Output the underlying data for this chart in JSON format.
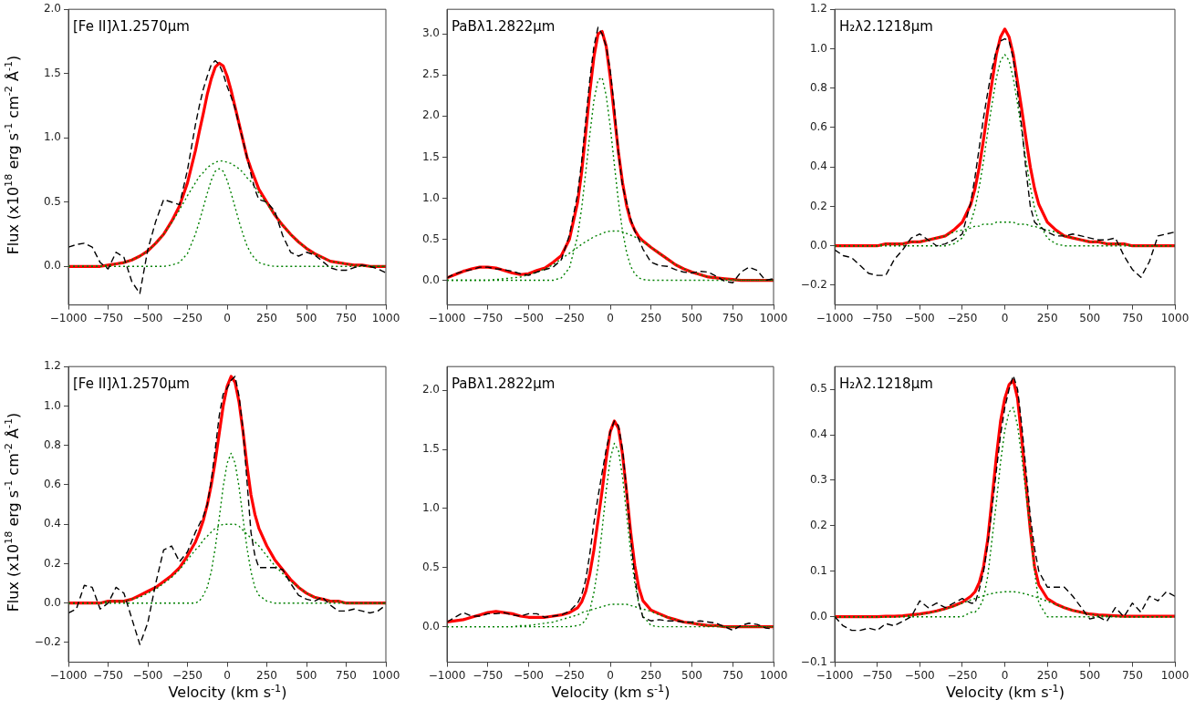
{
  "chart_data": [
    {
      "type": "line",
      "annotations": [
        "[Fe II]λ1.2570μm"
      ],
      "ylabel": "Flux (x10$^{18}$ erg s$^{-1}$ cm$^{-2}$ Å$^{-1}$)",
      "x": [
        -1000,
        -950,
        -900,
        -850,
        -800,
        -750,
        -700,
        -650,
        -600,
        -550,
        -500,
        -450,
        -400,
        -350,
        -300,
        -250,
        -200,
        -175,
        -150,
        -125,
        -100,
        -75,
        -50,
        -25,
        0,
        25,
        50,
        75,
        100,
        125,
        150,
        175,
        200,
        250,
        300,
        350,
        400,
        450,
        500,
        550,
        600,
        650,
        700,
        750,
        800,
        850,
        900,
        950,
        1000
      ],
      "xlim": [
        -1000,
        1000
      ],
      "xticks": [
        -1000,
        -750,
        -500,
        -250,
        0,
        250,
        500,
        750,
        1000
      ],
      "ylim": [
        -0.3,
        2.0
      ],
      "yticks": [
        {
          "value": 0,
          "label": "0.0"
        },
        {
          "value": 0.5,
          "label": "0.5"
        },
        {
          "value": 1,
          "label": "1.0"
        },
        {
          "value": 1.5,
          "label": "1.5"
        },
        {
          "value": 2,
          "label": "2.0"
        }
      ],
      "series": [
        {
          "color": "#000000",
          "line_style": "dashed",
          "values": [
            0.15,
            0.17,
            0.18,
            0.15,
            0.03,
            -0.02,
            0.11,
            0.07,
            -0.12,
            -0.21,
            0.13,
            0.35,
            0.52,
            0.5,
            0.48,
            0.75,
            1.1,
            1.25,
            1.38,
            1.48,
            1.57,
            1.6,
            1.57,
            1.5,
            1.4,
            1.32,
            1.23,
            1.1,
            0.98,
            0.85,
            0.72,
            0.6,
            0.52,
            0.5,
            0.43,
            0.24,
            0.11,
            0.08,
            0.11,
            0.09,
            0.04,
            -0.01,
            -0.03,
            -0.03,
            -0.01,
            0.01,
            0,
            -0.02,
            -0.05
          ]
        },
        {
          "color": "#ff0000",
          "line_style": "solid",
          "values": [
            0,
            0,
            0,
            0,
            0,
            0.01,
            0.02,
            0.03,
            0.05,
            0.08,
            0.12,
            0.18,
            0.25,
            0.35,
            0.47,
            0.65,
            0.9,
            1.05,
            1.19,
            1.34,
            1.46,
            1.55,
            1.58,
            1.56,
            1.48,
            1.37,
            1.24,
            1.11,
            0.98,
            0.85,
            0.76,
            0.68,
            0.6,
            0.5,
            0.4,
            0.32,
            0.25,
            0.19,
            0.14,
            0.1,
            0.07,
            0.04,
            0.03,
            0.02,
            0.01,
            0.01,
            0,
            0,
            0
          ]
        },
        {
          "color": "#008000",
          "line_style": "dotted",
          "values": [
            0,
            0,
            0,
            0,
            0,
            0.01,
            0.02,
            0.03,
            0.05,
            0.08,
            0.12,
            0.18,
            0.25,
            0.34,
            0.44,
            0.55,
            0.65,
            0.7,
            0.73,
            0.77,
            0.79,
            0.81,
            0.82,
            0.82,
            0.81,
            0.8,
            0.78,
            0.76,
            0.73,
            0.69,
            0.66,
            0.62,
            0.57,
            0.49,
            0.4,
            0.32,
            0.25,
            0.19,
            0.14,
            0.1,
            0.07,
            0.04,
            0.03,
            0.02,
            0.01,
            0.01,
            0,
            0,
            0
          ]
        },
        {
          "color": "#008000",
          "line_style": "dotted",
          "values": [
            0,
            0,
            0,
            0,
            0,
            0,
            0,
            0,
            0,
            0,
            0,
            0,
            0,
            0.01,
            0.03,
            0.1,
            0.25,
            0.35,
            0.46,
            0.57,
            0.67,
            0.74,
            0.76,
            0.74,
            0.67,
            0.57,
            0.46,
            0.35,
            0.25,
            0.16,
            0.1,
            0.06,
            0.03,
            0.01,
            0,
            0,
            0,
            0,
            0,
            0,
            0,
            0,
            0,
            0,
            0,
            0,
            0,
            0,
            0
          ]
        }
      ]
    },
    {
      "type": "line",
      "annotations": [
        "PaBλ1.2822μm"
      ],
      "x": [
        -1000,
        -950,
        -900,
        -850,
        -800,
        -750,
        -700,
        -650,
        -600,
        -550,
        -500,
        -450,
        -400,
        -350,
        -300,
        -250,
        -200,
        -175,
        -150,
        -125,
        -100,
        -75,
        -50,
        -25,
        0,
        25,
        50,
        75,
        100,
        125,
        150,
        175,
        200,
        250,
        300,
        350,
        400,
        450,
        500,
        550,
        600,
        650,
        700,
        750,
        800,
        850,
        900,
        950,
        1000
      ],
      "xlim": [
        -1000,
        1000
      ],
      "xticks": [
        -1000,
        -750,
        -500,
        -250,
        0,
        250,
        500,
        750,
        1000
      ],
      "ylim": [
        -0.3,
        3.3
      ],
      "yticks": [
        {
          "value": 0,
          "label": "0.0"
        },
        {
          "value": 0.5,
          "label": "0.5"
        },
        {
          "value": 1,
          "label": "1.0"
        },
        {
          "value": 1.5,
          "label": "1.5"
        },
        {
          "value": 2,
          "label": "2.0"
        },
        {
          "value": 2.5,
          "label": "2.5"
        },
        {
          "value": 3,
          "label": "3.0"
        }
      ],
      "series": [
        {
          "color": "#000000",
          "line_style": "dashed",
          "values": [
            0.03,
            0.08,
            0.11,
            0.13,
            0.16,
            0.16,
            0.14,
            0.13,
            0.11,
            0.08,
            0.06,
            0.1,
            0.13,
            0.16,
            0.25,
            0.55,
            1.05,
            1.45,
            1.95,
            2.45,
            2.85,
            3.08,
            3.0,
            2.85,
            2.55,
            2.1,
            1.55,
            1.15,
            0.95,
            0.75,
            0.6,
            0.5,
            0.38,
            0.22,
            0.18,
            0.17,
            0.13,
            0.1,
            0.09,
            0.11,
            0.1,
            0.05,
            -0.01,
            -0.03,
            0.1,
            0.16,
            0.12,
            0,
            0.02
          ]
        },
        {
          "color": "#ff0000",
          "line_style": "solid",
          "values": [
            0.03,
            0.07,
            0.11,
            0.14,
            0.16,
            0.16,
            0.15,
            0.12,
            0.09,
            0.07,
            0.08,
            0.12,
            0.15,
            0.22,
            0.3,
            0.5,
            0.95,
            1.32,
            1.8,
            2.3,
            2.72,
            3.0,
            3.03,
            2.85,
            2.47,
            2.01,
            1.56,
            1.19,
            0.91,
            0.72,
            0.61,
            0.53,
            0.48,
            0.4,
            0.33,
            0.26,
            0.19,
            0.14,
            0.1,
            0.07,
            0.04,
            0.03,
            0.02,
            0.01,
            0,
            0,
            0,
            0,
            0
          ]
        },
        {
          "color": "#008000",
          "line_style": "dotted",
          "values": [
            0,
            0,
            0,
            0,
            0,
            0,
            0.01,
            0.02,
            0.03,
            0.04,
            0.07,
            0.1,
            0.14,
            0.19,
            0.26,
            0.33,
            0.4,
            0.44,
            0.47,
            0.5,
            0.53,
            0.55,
            0.57,
            0.59,
            0.6,
            0.6,
            0.6,
            0.59,
            0.57,
            0.55,
            0.53,
            0.5,
            0.47,
            0.4,
            0.33,
            0.26,
            0.19,
            0.14,
            0.1,
            0.07,
            0.04,
            0.03,
            0.02,
            0.01,
            0,
            0,
            0,
            0,
            0
          ]
        },
        {
          "color": "#008000",
          "line_style": "dotted",
          "values": [
            0,
            0,
            0,
            0,
            0,
            0,
            0,
            0,
            0,
            0,
            0,
            0,
            0,
            0,
            0.03,
            0.15,
            0.54,
            0.88,
            1.32,
            1.78,
            2.19,
            2.44,
            2.47,
            2.25,
            1.87,
            1.41,
            0.96,
            0.6,
            0.34,
            0.17,
            0.08,
            0.03,
            0.01,
            0,
            0,
            0,
            0,
            0,
            0,
            0,
            0,
            0,
            0,
            0,
            0,
            0,
            0,
            0,
            0
          ]
        }
      ]
    },
    {
      "type": "line",
      "annotations": [
        "H₂λ2.1218μm"
      ],
      "x": [
        -1000,
        -950,
        -900,
        -850,
        -800,
        -750,
        -700,
        -650,
        -600,
        -550,
        -500,
        -450,
        -400,
        -350,
        -300,
        -250,
        -200,
        -175,
        -150,
        -125,
        -100,
        -75,
        -50,
        -25,
        0,
        25,
        50,
        75,
        100,
        125,
        150,
        175,
        200,
        250,
        300,
        350,
        400,
        450,
        500,
        550,
        600,
        650,
        700,
        750,
        800,
        850,
        900,
        950,
        1000
      ],
      "xlim": [
        -1000,
        1000
      ],
      "xticks": [
        -1000,
        -750,
        -500,
        -250,
        0,
        250,
        500,
        750,
        1000
      ],
      "ylim": [
        -0.3,
        1.2
      ],
      "yticks": [
        {
          "value": -0.2,
          "label": "−0.2"
        },
        {
          "value": 0,
          "label": "0.0"
        },
        {
          "value": 0.2,
          "label": "0.2"
        },
        {
          "value": 0.4,
          "label": "0.4"
        },
        {
          "value": 0.6,
          "label": "0.6"
        },
        {
          "value": 0.8,
          "label": "0.8"
        },
        {
          "value": 1,
          "label": "1.0"
        },
        {
          "value": 1.2,
          "label": "1.2"
        }
      ],
      "series": [
        {
          "color": "#000000",
          "line_style": "dashed",
          "values": [
            -0.02,
            -0.05,
            -0.06,
            -0.1,
            -0.14,
            -0.15,
            -0.15,
            -0.07,
            -0.02,
            0.04,
            0.06,
            0.03,
            0,
            0.01,
            0.03,
            0.06,
            0.22,
            0.35,
            0.5,
            0.65,
            0.78,
            0.9,
            0.99,
            1.04,
            1.05,
            1.04,
            0.95,
            0.78,
            0.6,
            0.38,
            0.2,
            0.12,
            0.1,
            0.07,
            0.05,
            0.05,
            0.06,
            0.05,
            0.04,
            0.03,
            0.03,
            0.04,
            -0.05,
            -0.12,
            -0.16,
            -0.08,
            0.05,
            0.06,
            0.07
          ]
        },
        {
          "color": "#ff0000",
          "line_style": "solid",
          "values": [
            0,
            0,
            0,
            0,
            0,
            0,
            0.01,
            0.01,
            0.01,
            0.02,
            0.02,
            0.03,
            0.04,
            0.05,
            0.08,
            0.12,
            0.21,
            0.29,
            0.4,
            0.54,
            0.69,
            0.83,
            0.97,
            1.06,
            1.1,
            1.06,
            0.97,
            0.83,
            0.69,
            0.54,
            0.4,
            0.29,
            0.21,
            0.12,
            0.08,
            0.05,
            0.04,
            0.03,
            0.02,
            0.02,
            0.01,
            0.01,
            0.01,
            0,
            0,
            0,
            0,
            0,
            0
          ]
        },
        {
          "color": "#008000",
          "line_style": "dotted",
          "values": [
            0,
            0,
            0,
            0,
            0,
            0,
            0.01,
            0.01,
            0.01,
            0.02,
            0.02,
            0.03,
            0.04,
            0.05,
            0.07,
            0.08,
            0.09,
            0.1,
            0.1,
            0.11,
            0.11,
            0.11,
            0.12,
            0.12,
            0.12,
            0.12,
            0.12,
            0.11,
            0.11,
            0.11,
            0.1,
            0.1,
            0.09,
            0.08,
            0.07,
            0.05,
            0.04,
            0.03,
            0.02,
            0.02,
            0.01,
            0.01,
            0.01,
            0,
            0,
            0,
            0,
            0,
            0
          ]
        },
        {
          "color": "#008000",
          "line_style": "dotted",
          "values": [
            0,
            0,
            0,
            0,
            0,
            0,
            0,
            0,
            0,
            0,
            0,
            0,
            0,
            0,
            0.01,
            0.04,
            0.12,
            0.19,
            0.3,
            0.43,
            0.58,
            0.72,
            0.85,
            0.94,
            0.97,
            0.94,
            0.85,
            0.72,
            0.58,
            0.43,
            0.3,
            0.19,
            0.12,
            0.04,
            0.01,
            0,
            0,
            0,
            0,
            0,
            0,
            0,
            0,
            0,
            0,
            0,
            0,
            0,
            0
          ]
        }
      ]
    },
    {
      "type": "line",
      "annotations": [
        "[Fe II]λ1.2570μm"
      ],
      "ylabel": "Flux (x10$^{18}$ erg s$^{-1}$ cm$^{-2}$ Å$^{-1}$)",
      "xlabel": "Velocity (km s$^{-1}$)",
      "x": [
        -1000,
        -950,
        -900,
        -850,
        -800,
        -750,
        -700,
        -650,
        -600,
        -550,
        -500,
        -450,
        -400,
        -350,
        -300,
        -250,
        -200,
        -175,
        -150,
        -125,
        -100,
        -75,
        -50,
        -25,
        0,
        25,
        50,
        75,
        100,
        125,
        150,
        175,
        200,
        250,
        300,
        350,
        400,
        450,
        500,
        550,
        600,
        650,
        700,
        750,
        800,
        850,
        900,
        950,
        1000
      ],
      "xlim": [
        -1000,
        1000
      ],
      "xticks": [
        -1000,
        -750,
        -500,
        -250,
        0,
        250,
        500,
        750,
        1000
      ],
      "ylim": [
        -0.3,
        1.2
      ],
      "yticks": [
        {
          "value": -0.2,
          "label": "−0.2"
        },
        {
          "value": 0,
          "label": "0.0"
        },
        {
          "value": 0.2,
          "label": "0.2"
        },
        {
          "value": 0.4,
          "label": "0.4"
        },
        {
          "value": 0.6,
          "label": "0.6"
        },
        {
          "value": 0.8,
          "label": "0.8"
        },
        {
          "value": 1,
          "label": "1.0"
        },
        {
          "value": 1.2,
          "label": "1.2"
        }
      ],
      "series": [
        {
          "color": "#000000",
          "line_style": "dashed",
          "values": [
            -0.05,
            -0.03,
            0.09,
            0.08,
            -0.03,
            0,
            0.08,
            0.05,
            -0.08,
            -0.21,
            -0.1,
            0.1,
            0.27,
            0.29,
            0.21,
            0.26,
            0.36,
            0.4,
            0.44,
            0.5,
            0.62,
            0.78,
            0.95,
            1.06,
            1.09,
            1.13,
            1.15,
            1.05,
            0.88,
            0.62,
            0.36,
            0.24,
            0.18,
            0.18,
            0.18,
            0.17,
            0.1,
            0.04,
            0.02,
            0.01,
            0.03,
            -0.01,
            -0.04,
            -0.04,
            -0.03,
            -0.04,
            -0.05,
            -0.04,
            -0.01
          ]
        },
        {
          "color": "#ff0000",
          "line_style": "solid",
          "values": [
            0,
            0,
            0,
            0,
            0,
            0.01,
            0.01,
            0.01,
            0.02,
            0.04,
            0.06,
            0.08,
            0.11,
            0.14,
            0.18,
            0.24,
            0.31,
            0.36,
            0.42,
            0.5,
            0.6,
            0.72,
            0.86,
            1.0,
            1.1,
            1.15,
            1.12,
            1.02,
            0.87,
            0.7,
            0.55,
            0.45,
            0.38,
            0.29,
            0.22,
            0.17,
            0.12,
            0.08,
            0.05,
            0.03,
            0.02,
            0.01,
            0.01,
            0,
            0,
            0,
            0,
            0,
            0
          ]
        },
        {
          "color": "#008000",
          "line_style": "dotted",
          "values": [
            0,
            0,
            0,
            0,
            0,
            0.01,
            0.01,
            0.01,
            0.02,
            0.03,
            0.05,
            0.07,
            0.1,
            0.13,
            0.17,
            0.22,
            0.27,
            0.29,
            0.32,
            0.34,
            0.36,
            0.38,
            0.39,
            0.4,
            0.4,
            0.4,
            0.4,
            0.39,
            0.37,
            0.35,
            0.33,
            0.31,
            0.29,
            0.24,
            0.19,
            0.15,
            0.11,
            0.08,
            0.05,
            0.03,
            0.02,
            0.01,
            0.01,
            0,
            0,
            0,
            0,
            0,
            0
          ]
        },
        {
          "color": "#008000",
          "line_style": "dotted",
          "values": [
            0,
            0,
            0,
            0,
            0,
            0,
            0,
            0,
            0,
            0,
            0,
            0,
            0,
            0,
            0,
            0,
            0,
            0.01,
            0.04,
            0.08,
            0.16,
            0.28,
            0.43,
            0.59,
            0.71,
            0.76,
            0.71,
            0.59,
            0.43,
            0.28,
            0.16,
            0.08,
            0.04,
            0.01,
            0,
            0,
            0,
            0,
            0,
            0,
            0,
            0,
            0,
            0,
            0,
            0,
            0,
            0,
            0
          ]
        }
      ]
    },
    {
      "type": "line",
      "annotations": [
        "PaBλ1.2822μm"
      ],
      "xlabel": "Velocity (km s$^{-1}$)",
      "x": [
        -1000,
        -950,
        -900,
        -850,
        -800,
        -750,
        -700,
        -650,
        -600,
        -550,
        -500,
        -450,
        -400,
        -350,
        -300,
        -250,
        -200,
        -175,
        -150,
        -125,
        -100,
        -75,
        -50,
        -25,
        0,
        25,
        50,
        75,
        100,
        125,
        150,
        175,
        200,
        250,
        300,
        350,
        400,
        450,
        500,
        550,
        600,
        650,
        700,
        750,
        800,
        850,
        900,
        950,
        1000
      ],
      "xlim": [
        -1000,
        1000
      ],
      "xticks": [
        -1000,
        -750,
        -500,
        -250,
        0,
        250,
        500,
        750,
        1000
      ],
      "ylim": [
        -0.3,
        2.2
      ],
      "yticks": [
        {
          "value": 0,
          "label": "0.0"
        },
        {
          "value": 0.5,
          "label": "0.5"
        },
        {
          "value": 1,
          "label": "1.0"
        },
        {
          "value": 1.5,
          "label": "1.5"
        },
        {
          "value": 2,
          "label": "2.0"
        }
      ],
      "series": [
        {
          "color": "#000000",
          "line_style": "dashed",
          "values": [
            0.04,
            0.08,
            0.12,
            0.09,
            0.09,
            0.11,
            0.11,
            0.12,
            0.1,
            0.09,
            0.11,
            0.11,
            0.08,
            0.09,
            0.1,
            0.13,
            0.2,
            0.27,
            0.4,
            0.62,
            0.88,
            1.1,
            1.3,
            1.5,
            1.65,
            1.74,
            1.7,
            1.5,
            1.15,
            0.75,
            0.42,
            0.2,
            0.08,
            0.05,
            0.06,
            0.05,
            0.05,
            0.04,
            0.04,
            0.05,
            0.04,
            0.03,
            0,
            -0.03,
            0.01,
            0.03,
            0.02,
            -0.01,
            -0.02
          ]
        },
        {
          "color": "#ff0000",
          "line_style": "solid",
          "values": [
            0.04,
            0.05,
            0.06,
            0.08,
            0.1,
            0.12,
            0.13,
            0.12,
            0.11,
            0.09,
            0.08,
            0.08,
            0.08,
            0.09,
            0.1,
            0.12,
            0.16,
            0.21,
            0.3,
            0.45,
            0.65,
            0.9,
            1.15,
            1.42,
            1.65,
            1.74,
            1.68,
            1.46,
            1.14,
            0.8,
            0.52,
            0.33,
            0.22,
            0.14,
            0.11,
            0.08,
            0.06,
            0.04,
            0.03,
            0.02,
            0.01,
            0.01,
            0,
            0,
            0,
            0,
            0,
            0,
            0
          ]
        },
        {
          "color": "#008000",
          "line_style": "dotted",
          "values": [
            0,
            0,
            0,
            0,
            0,
            0,
            0,
            0,
            0,
            0.01,
            0.01,
            0.02,
            0.03,
            0.04,
            0.06,
            0.08,
            0.1,
            0.12,
            0.13,
            0.14,
            0.15,
            0.16,
            0.17,
            0.18,
            0.19,
            0.19,
            0.19,
            0.19,
            0.19,
            0.18,
            0.17,
            0.16,
            0.15,
            0.13,
            0.1,
            0.08,
            0.06,
            0.04,
            0.03,
            0.02,
            0.01,
            0.01,
            0,
            0,
            0,
            0,
            0,
            0,
            0
          ]
        },
        {
          "color": "#008000",
          "line_style": "dotted",
          "values": [
            0,
            0,
            0,
            0,
            0,
            0,
            0,
            0,
            0,
            0,
            0,
            0,
            0,
            0,
            0,
            0,
            0.01,
            0.02,
            0.06,
            0.14,
            0.29,
            0.51,
            0.82,
            1.15,
            1.42,
            1.55,
            1.49,
            1.27,
            0.95,
            0.63,
            0.37,
            0.19,
            0.09,
            0.01,
            0,
            0,
            0,
            0,
            0,
            0,
            0,
            0,
            0,
            0,
            0,
            0,
            0,
            0,
            0
          ]
        }
      ]
    },
    {
      "type": "line",
      "annotations": [
        "H₂λ2.1218μm"
      ],
      "xlabel": "Velocity (km s$^{-1}$)",
      "x": [
        -1000,
        -950,
        -900,
        -850,
        -800,
        -750,
        -700,
        -650,
        -600,
        -550,
        -500,
        -450,
        -400,
        -350,
        -300,
        -250,
        -200,
        -175,
        -150,
        -125,
        -100,
        -75,
        -50,
        -25,
        0,
        25,
        50,
        75,
        100,
        125,
        150,
        175,
        200,
        250,
        300,
        350,
        400,
        450,
        500,
        550,
        600,
        650,
        700,
        750,
        800,
        850,
        900,
        950,
        1000
      ],
      "xlim": [
        -1000,
        1000
      ],
      "xticks": [
        -1000,
        -750,
        -500,
        -250,
        0,
        250,
        500,
        750,
        1000
      ],
      "ylim": [
        -0.1,
        0.55
      ],
      "yticks": [
        {
          "value": -0.1,
          "label": "−0.1"
        },
        {
          "value": 0,
          "label": "0.0"
        },
        {
          "value": 0.1,
          "label": "0.1"
        },
        {
          "value": 0.2,
          "label": "0.2"
        },
        {
          "value": 0.3,
          "label": "0.3"
        },
        {
          "value": 0.4,
          "label": "0.4"
        },
        {
          "value": 0.5,
          "label": "0.5"
        }
      ],
      "series": [
        {
          "color": "#000000",
          "line_style": "dashed",
          "values": [
            0,
            -0.02,
            -0.03,
            -0.03,
            -0.025,
            -0.03,
            -0.015,
            -0.02,
            -0.01,
            0,
            0.035,
            0.02,
            0.03,
            0.02,
            0.03,
            0.04,
            0.03,
            0.03,
            0.06,
            0.1,
            0.16,
            0.24,
            0.32,
            0.4,
            0.46,
            0.5,
            0.53,
            0.5,
            0.42,
            0.32,
            0.22,
            0.15,
            0.1,
            0.065,
            0.065,
            0.065,
            0.045,
            0.02,
            -0.005,
            0,
            -0.01,
            0.02,
            0,
            0.03,
            0.01,
            0.045,
            0.035,
            0.055,
            0.045
          ]
        },
        {
          "color": "#ff0000",
          "line_style": "solid",
          "values": [
            0,
            0,
            0,
            0,
            0,
            0,
            0.001,
            0.001,
            0.002,
            0.004,
            0.006,
            0.009,
            0.013,
            0.018,
            0.024,
            0.032,
            0.045,
            0.055,
            0.075,
            0.11,
            0.17,
            0.26,
            0.35,
            0.43,
            0.48,
            0.51,
            0.52,
            0.48,
            0.39,
            0.29,
            0.19,
            0.11,
            0.07,
            0.04,
            0.028,
            0.02,
            0.014,
            0.01,
            0.006,
            0.004,
            0.003,
            0.002,
            0.001,
            0.001,
            0.001,
            0.001,
            0.001,
            0.001,
            0.001
          ]
        },
        {
          "color": "#008000",
          "line_style": "dotted",
          "values": [
            0,
            0,
            0,
            0,
            0,
            0,
            0,
            0,
            0.001,
            0.003,
            0.005,
            0.008,
            0.012,
            0.017,
            0.023,
            0.03,
            0.037,
            0.04,
            0.043,
            0.046,
            0.049,
            0.051,
            0.053,
            0.054,
            0.055,
            0.055,
            0.055,
            0.054,
            0.052,
            0.05,
            0.047,
            0.044,
            0.041,
            0.034,
            0.027,
            0.02,
            0.014,
            0.009,
            0.006,
            0.003,
            0.002,
            0.001,
            0,
            0,
            0,
            0,
            0,
            0,
            0
          ]
        },
        {
          "color": "#008000",
          "line_style": "dotted",
          "values": [
            0,
            0,
            0,
            0,
            0,
            0,
            0,
            0,
            0,
            0,
            0,
            0,
            0,
            0,
            0,
            0,
            0.01,
            0.01,
            0.02,
            0.04,
            0.09,
            0.17,
            0.25,
            0.34,
            0.41,
            0.45,
            0.46,
            0.42,
            0.35,
            0.27,
            0.19,
            0.1,
            0.03,
            0,
            0,
            0,
            0,
            0,
            0,
            0,
            0,
            0,
            0,
            0,
            0,
            0,
            0,
            0,
            0
          ]
        }
      ]
    }
  ]
}
